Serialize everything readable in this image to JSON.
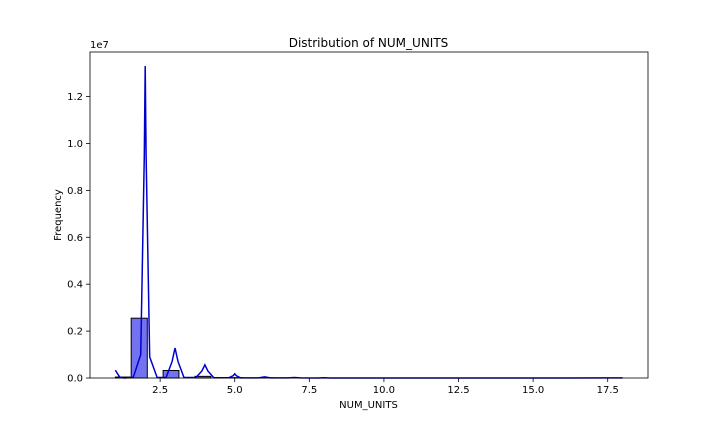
{
  "chart_data": {
    "type": "bar",
    "title": "Distribution of NUM_UNITS",
    "xlabel": "NUM_UNITS",
    "ylabel": "Frequency",
    "y_offset_label": "1e7",
    "xlim": [
      0.15,
      18.85
    ],
    "ylim": [
      0,
      13900000
    ],
    "x_ticks": [
      2.5,
      5.0,
      7.5,
      10.0,
      12.5,
      15.0,
      17.5
    ],
    "x_tick_labels": [
      "2.5",
      "5.0",
      "7.5",
      "10.0",
      "12.5",
      "15.0",
      "17.5"
    ],
    "y_ticks": [
      0,
      2000000,
      4000000,
      6000000,
      8000000,
      10000000,
      12000000
    ],
    "y_tick_labels": [
      "0.0",
      "0.2",
      "0.4",
      "0.6",
      "0.8",
      "1.0",
      "1.2"
    ],
    "grid": false,
    "legend": "none",
    "bar_color": "#7373f2",
    "bar_edge_color": "#000000",
    "kde_color": "#0000cc",
    "histogram": {
      "bins": [
        {
          "x0": 1.0,
          "x1": 1.53,
          "count": 40000
        },
        {
          "x0": 1.53,
          "x1": 2.07,
          "count": 2550000
        },
        {
          "x0": 2.6,
          "x1": 3.13,
          "count": 320000
        },
        {
          "x0": 3.67,
          "x1": 4.2,
          "count": 70000
        },
        {
          "x0": 4.73,
          "x1": 5.27,
          "count": 15000
        },
        {
          "x0": 5.8,
          "x1": 6.33,
          "count": 5000
        }
      ]
    },
    "kde": {
      "x": [
        1.0,
        1.15,
        1.3,
        1.6,
        1.85,
        1.97,
        2.0,
        2.03,
        2.15,
        2.4,
        2.7,
        2.9,
        3.0,
        3.1,
        3.3,
        3.7,
        3.9,
        4.0,
        4.1,
        4.3,
        4.8,
        4.95,
        5.0,
        5.05,
        5.2,
        5.8,
        6.0,
        6.2,
        6.8,
        7.0,
        7.2,
        7.8,
        8.0,
        8.2,
        9.0,
        10.0,
        12.0,
        14.0,
        16.0,
        18.0
      ],
      "y": [
        330000,
        30000,
        0,
        30000,
        1000000,
        9500000,
        13300000,
        9500000,
        900000,
        20000,
        20000,
        700000,
        1280000,
        700000,
        20000,
        20000,
        300000,
        560000,
        300000,
        10000,
        10000,
        100000,
        180000,
        100000,
        5000,
        5000,
        50000,
        5000,
        3000,
        20000,
        3000,
        2000,
        8000,
        2000,
        1000,
        0,
        0,
        0,
        0,
        5000
      ]
    }
  }
}
